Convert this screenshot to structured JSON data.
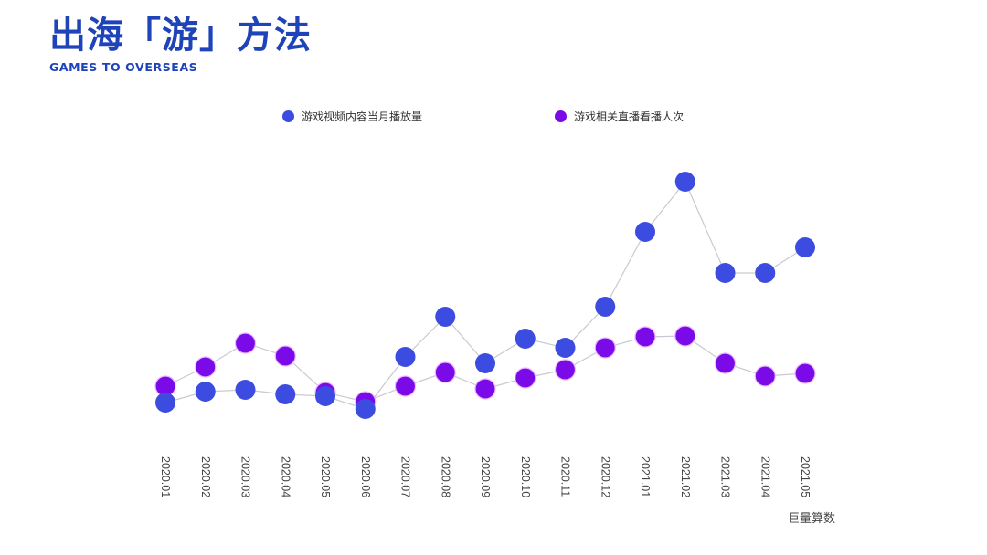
{
  "logo": {
    "title": "出海「游」方法",
    "subtitle": "GAMES TO OVERSEAS",
    "color": "#1f43b8"
  },
  "source": "巨量算数",
  "chart_data": {
    "type": "line",
    "title": "",
    "xlabel": "",
    "ylabel": "",
    "grid": false,
    "legend_position": "top",
    "y_axis_visible": false,
    "ylim": [
      0,
      300
    ],
    "note": "No y-axis shown; values are relative estimates read from point heights",
    "categories": [
      "2020.01",
      "2020.02",
      "2020.03",
      "2020.04",
      "2020.05",
      "2020.06",
      "2020.07",
      "2020.08",
      "2020.09",
      "2020.10",
      "2020.11",
      "2020.12",
      "2021.01",
      "2021.02",
      "2021.03",
      "2021.04",
      "2021.05"
    ],
    "series": [
      {
        "name": "游戏视频内容当月播放量",
        "color": "#3d4ce0",
        "values": [
          39,
          51,
          53,
          48,
          46,
          32,
          89,
          133,
          82,
          109,
          99,
          144,
          226,
          281,
          181,
          181,
          209
        ]
      },
      {
        "name": "游戏相关直播看播人次",
        "color": "#7a0ae8",
        "values": [
          57,
          78,
          104,
          90,
          50,
          40,
          57,
          72,
          54,
          66,
          75,
          99,
          111,
          112,
          82,
          68,
          71
        ]
      }
    ]
  }
}
